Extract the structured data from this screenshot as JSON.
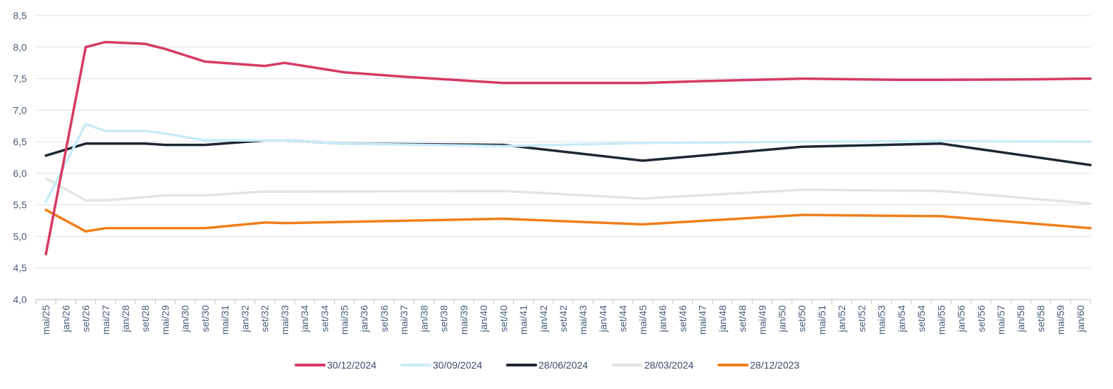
{
  "chart_data": {
    "type": "line",
    "title": "",
    "xlabel": "",
    "ylabel": "",
    "ylim": [
      4.0,
      8.5
    ],
    "y_ticks": [
      "4,0",
      "4,5",
      "5,0",
      "5,5",
      "6,0",
      "6,5",
      "7,0",
      "7,5",
      "8,0",
      "8,5"
    ],
    "grid": "horizontal",
    "legend_position": "bottom",
    "x_labels": [
      "mai/25",
      "jan/26",
      "set/26",
      "mai/27",
      "jan/28",
      "set/28",
      "mai/29",
      "jan/30",
      "set/30",
      "mai/31",
      "jan/32",
      "set/32",
      "mai/33",
      "jan/34",
      "set/34",
      "mai/35",
      "jan/36",
      "set/36",
      "mai/37",
      "jan/38",
      "set/38",
      "mai/39",
      "jan/40",
      "set/40",
      "mai/41",
      "jan/42",
      "set/42",
      "mai/43",
      "jan/44",
      "set/44",
      "mai/45",
      "jan/46",
      "set/46",
      "mai/47",
      "jan/48",
      "set/48",
      "mai/49",
      "jan/50",
      "set/50",
      "mai/51",
      "jan/52",
      "set/52",
      "mai/53",
      "jan/54",
      "set/54",
      "mai/55",
      "jan/56",
      "set/56",
      "mai/57",
      "jan/58",
      "set/58",
      "mai/59",
      "jan/60"
    ],
    "series": [
      {
        "name": "30/12/2024",
        "color": "#d63a63",
        "points": [
          [
            "mai/25",
            4.72
          ],
          [
            "set/26",
            8.0
          ],
          [
            "mai/27",
            8.08
          ],
          [
            "set/28",
            8.05
          ],
          [
            "mai/29",
            7.97
          ],
          [
            "set/30",
            7.77
          ],
          [
            "set/32",
            7.7
          ],
          [
            "mai/33",
            7.75
          ],
          [
            "mai/35",
            7.6
          ],
          [
            "mai/37",
            7.53
          ],
          [
            "mai/39",
            7.47
          ],
          [
            "set/40",
            7.43
          ],
          [
            "mai/45",
            7.43
          ],
          [
            "mai/47",
            7.46
          ],
          [
            "set/50",
            7.5
          ],
          [
            "jan/54",
            7.48
          ],
          [
            "mai/55",
            7.48
          ],
          [
            "set/58",
            7.49
          ],
          [
            "jan/60",
            7.5
          ],
          [
            "jan/60+",
            7.5
          ]
        ]
      },
      {
        "name": "30/09/2024",
        "color": "#c8ecf8",
        "points": [
          [
            "mai/25",
            5.55
          ],
          [
            "set/26",
            6.78
          ],
          [
            "mai/27",
            6.67
          ],
          [
            "set/28",
            6.67
          ],
          [
            "mai/29",
            6.63
          ],
          [
            "set/30",
            6.52
          ],
          [
            "set/32",
            6.52
          ],
          [
            "mai/33",
            6.52
          ],
          [
            "mai/35",
            6.47
          ],
          [
            "set/40",
            6.43
          ],
          [
            "mai/45",
            6.48
          ],
          [
            "set/50",
            6.5
          ],
          [
            "mai/55",
            6.51
          ],
          [
            "jan/60+",
            6.5
          ]
        ]
      },
      {
        "name": "28/06/2024",
        "color": "#1f2633",
        "points": [
          [
            "mai/25",
            6.28
          ],
          [
            "set/26",
            6.47
          ],
          [
            "set/28",
            6.47
          ],
          [
            "mai/29",
            6.45
          ],
          [
            "set/30",
            6.45
          ],
          [
            "set/32",
            6.52
          ],
          [
            "mai/33",
            6.52
          ],
          [
            "mai/35",
            6.47
          ],
          [
            "set/40",
            6.45
          ],
          [
            "mai/45",
            6.2
          ],
          [
            "set/50",
            6.42
          ],
          [
            "mai/55",
            6.47
          ],
          [
            "jan/60+",
            6.13
          ]
        ]
      },
      {
        "name": "28/03/2024",
        "color": "#e4e4e4",
        "points": [
          [
            "mai/25",
            5.92
          ],
          [
            "set/26",
            5.57
          ],
          [
            "mai/27",
            5.57
          ],
          [
            "mai/29",
            5.65
          ],
          [
            "set/30",
            5.65
          ],
          [
            "set/32",
            5.71
          ],
          [
            "mai/33",
            5.71
          ],
          [
            "set/40",
            5.72
          ],
          [
            "mai/45",
            5.6
          ],
          [
            "set/50",
            5.74
          ],
          [
            "mai/55",
            5.72
          ],
          [
            "jan/60+",
            5.52
          ]
        ]
      },
      {
        "name": "28/12/2023",
        "color": "#f07f1a",
        "points": [
          [
            "mai/25",
            5.42
          ],
          [
            "set/26",
            5.08
          ],
          [
            "mai/27",
            5.13
          ],
          [
            "set/30",
            5.13
          ],
          [
            "set/32",
            5.22
          ],
          [
            "mai/33",
            5.21
          ],
          [
            "set/40",
            5.28
          ],
          [
            "mai/45",
            5.19
          ],
          [
            "set/50",
            5.34
          ],
          [
            "mai/55",
            5.32
          ],
          [
            "jan/60+",
            5.13
          ]
        ]
      }
    ]
  }
}
